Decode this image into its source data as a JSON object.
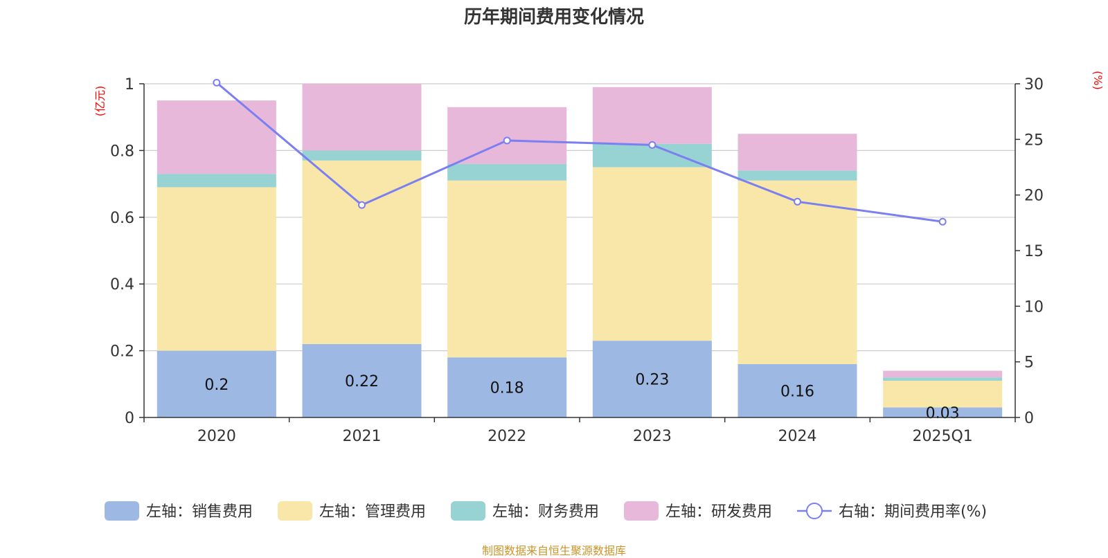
{
  "chart_data": {
    "type": "bar",
    "title": "历年期间费用变化情况",
    "categories": [
      "2020",
      "2021",
      "2022",
      "2023",
      "2024",
      "2025Q1"
    ],
    "left_axis": {
      "label": "(亿元)",
      "ylim": [
        0,
        1
      ],
      "ticks": [
        "0",
        "0.2",
        "0.4",
        "0.6",
        "0.8",
        "1"
      ],
      "tick_values": [
        0,
        0.2,
        0.4,
        0.6,
        0.8,
        1
      ]
    },
    "right_axis": {
      "label": "(%)",
      "ylim": [
        0,
        30
      ],
      "ticks": [
        "0",
        "5",
        "10",
        "15",
        "20",
        "25",
        "30"
      ],
      "tick_values": [
        0,
        5,
        10,
        15,
        20,
        25,
        30
      ]
    },
    "grid": true,
    "legend_position": "bottom",
    "series": [
      {
        "name": "左轴：销售费用",
        "axis": "left",
        "color": "#9db8e2",
        "values": [
          0.2,
          0.22,
          0.18,
          0.23,
          0.16,
          0.03
        ],
        "labels": [
          "0.2",
          "0.22",
          "0.18",
          "0.23",
          "0.16",
          "0.03"
        ]
      },
      {
        "name": "左轴：管理费用",
        "axis": "left",
        "color": "#f8e7a8",
        "values": [
          0.49,
          0.55,
          0.53,
          0.52,
          0.55,
          0.08
        ]
      },
      {
        "name": "左轴：财务费用",
        "axis": "left",
        "color": "#97d3d3",
        "values": [
          0.04,
          0.03,
          0.05,
          0.07,
          0.03,
          0.01
        ]
      },
      {
        "name": "左轴：研发费用",
        "axis": "left",
        "color": "#e7b8d9",
        "values": [
          0.22,
          0.2,
          0.17,
          0.17,
          0.11,
          0.02
        ]
      },
      {
        "name": "右轴：期间费用率(%)",
        "axis": "right",
        "type": "line",
        "color": "#7b7ff0",
        "values": [
          30.1,
          19.1,
          24.9,
          24.5,
          19.4,
          17.6
        ]
      }
    ]
  },
  "footer": "制图数据来自恒生聚源数据库"
}
